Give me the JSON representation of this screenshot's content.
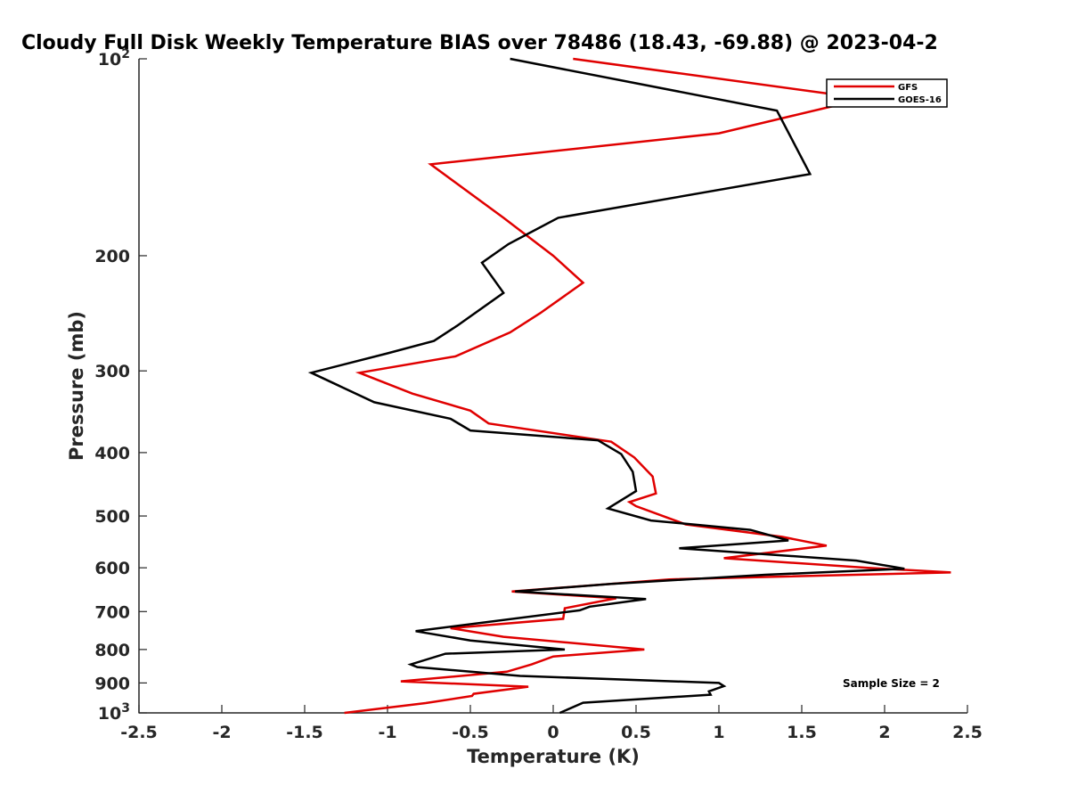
{
  "chart_data": {
    "type": "line",
    "title": "Cloudy Full Disk Weekly Temperature BIAS over 78486 (18.43, -69.88) @ 2023-04-2",
    "xlabel": "Temperature (K)",
    "ylabel": "Pressure (mb)",
    "xlim": [
      -2.5,
      2.5
    ],
    "ylim": [
      1000,
      100
    ],
    "y_scale": "log",
    "y_reversed": true,
    "grid": false,
    "legend_position": "top-right",
    "x_ticks": [
      "-2.5",
      "-2",
      "-1.5",
      "-1",
      "-0.5",
      "0",
      "0.5",
      "1",
      "1.5",
      "2",
      "2.5"
    ],
    "y_ticks": [
      {
        "value": 100,
        "label": "10",
        "sup": "2"
      },
      {
        "value": 200,
        "label": "200"
      },
      {
        "value": 300,
        "label": "300"
      },
      {
        "value": 400,
        "label": "400"
      },
      {
        "value": 500,
        "label": "500"
      },
      {
        "value": 600,
        "label": "600"
      },
      {
        "value": 700,
        "label": "700"
      },
      {
        "value": 800,
        "label": "800"
      },
      {
        "value": 900,
        "label": "900"
      },
      {
        "value": 1000,
        "label": "10",
        "sup": "3"
      }
    ],
    "annotation": "Sample Size = 2",
    "series": [
      {
        "name": "GFS",
        "color": "#e00000",
        "points": [
          [
            0.12,
            100
          ],
          [
            1.88,
            115
          ],
          [
            1.0,
            130
          ],
          [
            -0.74,
            145
          ],
          [
            -0.3,
            175
          ],
          [
            0.0,
            200
          ],
          [
            0.18,
            220
          ],
          [
            -0.08,
            245
          ],
          [
            -0.26,
            262
          ],
          [
            -0.59,
            285
          ],
          [
            -1.17,
            302
          ],
          [
            -0.85,
            325
          ],
          [
            -0.5,
            345
          ],
          [
            -0.39,
            361
          ],
          [
            0.35,
            385
          ],
          [
            0.49,
            407
          ],
          [
            0.6,
            435
          ],
          [
            0.62,
            462
          ],
          [
            0.46,
            476
          ],
          [
            0.5,
            483
          ],
          [
            0.8,
            515
          ],
          [
            1.38,
            538
          ],
          [
            1.65,
            555
          ],
          [
            1.03,
            580
          ],
          [
            1.9,
            600
          ],
          [
            2.4,
            610
          ],
          [
            0.7,
            625
          ],
          [
            -0.25,
            652
          ],
          [
            0.38,
            668
          ],
          [
            0.07,
            692
          ],
          [
            0.06,
            718
          ],
          [
            -0.62,
            742
          ],
          [
            -0.3,
            765
          ],
          [
            0.55,
            800
          ],
          [
            0.0,
            820
          ],
          [
            -0.13,
            843
          ],
          [
            -0.28,
            865
          ],
          [
            -0.92,
            895
          ],
          [
            -0.15,
            912
          ],
          [
            -0.48,
            935
          ],
          [
            -0.49,
            942
          ],
          [
            -0.77,
            966
          ],
          [
            -1.26,
            1000
          ]
        ]
      },
      {
        "name": "GOES-16",
        "color": "#000000",
        "points": [
          [
            -0.26,
            100
          ],
          [
            1.35,
            120
          ],
          [
            1.55,
            150
          ],
          [
            0.03,
            175
          ],
          [
            -0.27,
            192
          ],
          [
            -0.43,
            205
          ],
          [
            -0.3,
            228
          ],
          [
            -0.58,
            256
          ],
          [
            -0.72,
            270
          ],
          [
            -1.0,
            282
          ],
          [
            -1.46,
            302
          ],
          [
            -1.08,
            335
          ],
          [
            -0.62,
            355
          ],
          [
            -0.5,
            370
          ],
          [
            0.27,
            383
          ],
          [
            0.41,
            402
          ],
          [
            0.48,
            428
          ],
          [
            0.5,
            458
          ],
          [
            0.33,
            487
          ],
          [
            0.59,
            508
          ],
          [
            1.19,
            525
          ],
          [
            1.42,
            545
          ],
          [
            0.76,
            560
          ],
          [
            1.83,
            585
          ],
          [
            2.12,
            602
          ],
          [
            1.28,
            615
          ],
          [
            0.35,
            635
          ],
          [
            -0.23,
            652
          ],
          [
            0.56,
            670
          ],
          [
            0.22,
            688
          ],
          [
            0.16,
            697
          ],
          [
            -0.83,
            750
          ],
          [
            -0.5,
            775
          ],
          [
            0.07,
            800
          ],
          [
            -0.65,
            812
          ],
          [
            -0.86,
            843
          ],
          [
            -0.82,
            851
          ],
          [
            -0.2,
            878
          ],
          [
            1.0,
            900
          ],
          [
            1.03,
            910
          ],
          [
            0.94,
            927
          ],
          [
            0.95,
            938
          ],
          [
            0.18,
            965
          ],
          [
            0.04,
            1000
          ]
        ]
      }
    ]
  }
}
